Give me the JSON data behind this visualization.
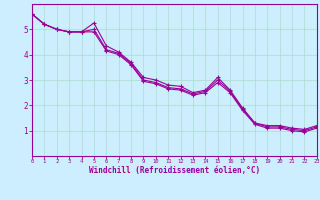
{
  "title": "",
  "xlabel": "Windchill (Refroidissement éolien,°C)",
  "ylabel": "",
  "bg_color": "#cceeff",
  "line_color": "#990099",
  "marker": "+",
  "xlim": [
    0,
    23
  ],
  "ylim": [
    0,
    6
  ],
  "xticks": [
    0,
    1,
    2,
    3,
    4,
    5,
    6,
    7,
    8,
    9,
    10,
    11,
    12,
    13,
    14,
    15,
    16,
    17,
    18,
    19,
    20,
    21,
    22,
    23
  ],
  "yticks": [
    1,
    2,
    3,
    4,
    5
  ],
  "grid_color": "#aaddcc",
  "line1_x": [
    0,
    1,
    2,
    3,
    4,
    5,
    6,
    7,
    8,
    9,
    10,
    11,
    12,
    13,
    14,
    15,
    16,
    17,
    18,
    19,
    20,
    21,
    22,
    23
  ],
  "line1_y": [
    5.6,
    5.2,
    5.0,
    4.9,
    4.9,
    5.25,
    4.35,
    4.1,
    3.7,
    3.1,
    3.0,
    2.8,
    2.75,
    2.5,
    2.6,
    3.1,
    2.6,
    1.9,
    1.3,
    1.2,
    1.2,
    1.1,
    1.05,
    1.2
  ],
  "line2_x": [
    0,
    1,
    2,
    3,
    4,
    5,
    6,
    7,
    8,
    9,
    10,
    11,
    12,
    13,
    14,
    15,
    16,
    17,
    18,
    19,
    20,
    21,
    22,
    23
  ],
  "line2_y": [
    5.6,
    5.2,
    5.0,
    4.9,
    4.9,
    5.0,
    4.2,
    4.05,
    3.65,
    3.0,
    2.9,
    2.7,
    2.65,
    2.45,
    2.55,
    3.0,
    2.55,
    1.85,
    1.3,
    1.15,
    1.15,
    1.05,
    1.0,
    1.15
  ],
  "line3_x": [
    0,
    1,
    2,
    3,
    4,
    5,
    6,
    7,
    8,
    9,
    10,
    11,
    12,
    13,
    14,
    15,
    16,
    17,
    18,
    19,
    20,
    21,
    22,
    23
  ],
  "line3_y": [
    5.6,
    5.2,
    5.0,
    4.9,
    4.9,
    4.9,
    4.15,
    4.0,
    3.6,
    2.95,
    2.85,
    2.65,
    2.6,
    2.4,
    2.5,
    2.9,
    2.5,
    1.8,
    1.25,
    1.1,
    1.1,
    1.0,
    0.95,
    1.1
  ]
}
